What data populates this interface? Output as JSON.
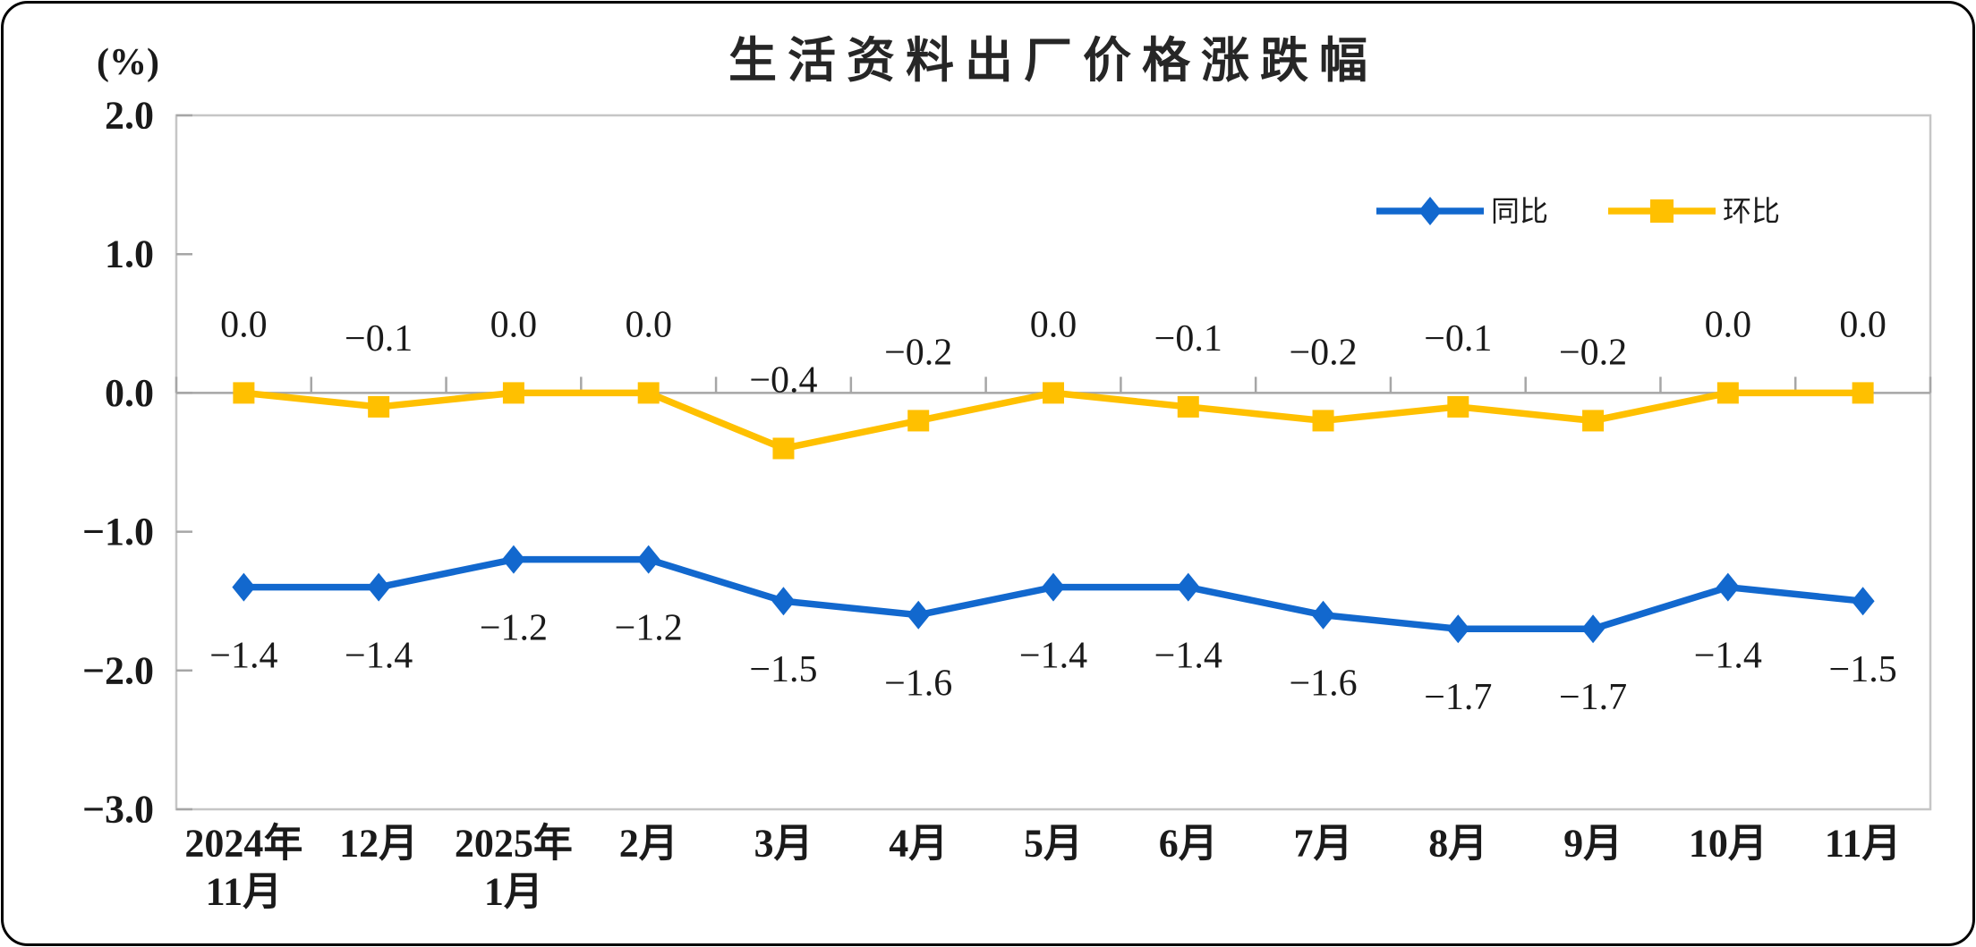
{
  "chart_data": {
    "type": "line",
    "title": "生活资料出厂价格涨跌幅",
    "ylabel": "(%)",
    "xlabel": "",
    "ylim": [
      -3.0,
      2.0
    ],
    "ytick_labels": [
      "2.0",
      "1.0",
      "0.0",
      "-1.0",
      "-2.0",
      "-3.0"
    ],
    "grid": false,
    "legend_position": "top-right-inside",
    "categories": [
      [
        "2024年",
        "11月"
      ],
      [
        "12月"
      ],
      [
        "2025年",
        "1月"
      ],
      [
        "2月"
      ],
      [
        "3月"
      ],
      [
        "4月"
      ],
      [
        "5月"
      ],
      [
        "6月"
      ],
      [
        "7月"
      ],
      [
        "8月"
      ],
      [
        "9月"
      ],
      [
        "10月"
      ],
      [
        "11月"
      ]
    ],
    "series": [
      {
        "id": "yoy",
        "name": "同比",
        "marker": "diamond",
        "color": "#1268CE",
        "label_side": "below",
        "values": [
          -1.4,
          -1.4,
          -1.2,
          -1.2,
          -1.5,
          -1.6,
          -1.4,
          -1.4,
          -1.6,
          -1.7,
          -1.7,
          -1.4,
          -1.5
        ],
        "labels": [
          "-1.4",
          "-1.4",
          "-1.2",
          "-1.2",
          "-1.5",
          "-1.6",
          "-1.4",
          "-1.4",
          "-1.6",
          "-1.7",
          "-1.7",
          "-1.4",
          "-1.5"
        ]
      },
      {
        "id": "mom",
        "name": "环比",
        "marker": "square",
        "color": "#FFC000",
        "label_side": "above",
        "values": [
          0.0,
          -0.1,
          0.0,
          0.0,
          -0.4,
          -0.2,
          0.0,
          -0.1,
          -0.2,
          -0.1,
          -0.2,
          0.0,
          0.0
        ],
        "labels": [
          "0.0",
          "-0.1",
          "0.0",
          "0.0",
          "-0.4",
          "-0.2",
          "0.0",
          "-0.1",
          "-0.2",
          "-0.1",
          "-0.2",
          "0.0",
          "0.0"
        ]
      }
    ]
  },
  "colors": {
    "axis": "#A6A6A6",
    "plot_border": "#C6C6C6",
    "text": "#1A1A1A",
    "frame": "#000000",
    "background": "#FFFFFF"
  }
}
